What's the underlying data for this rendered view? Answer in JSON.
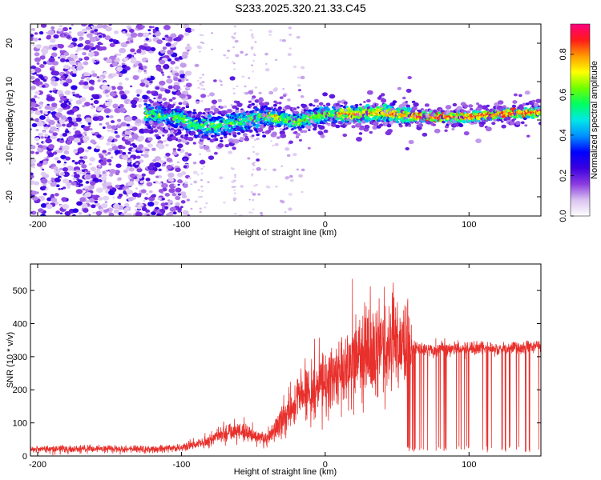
{
  "title": "S233.2025.320.21.33.C45",
  "chart_data": [
    {
      "type": "heatmap",
      "xlabel": "Height of straight line (km)",
      "ylabel": "Frequency (Hz)",
      "xlim": [
        -205,
        150
      ],
      "ylim": [
        -25,
        25
      ],
      "xticks": [
        -200,
        -100,
        0,
        100
      ],
      "yticks": [
        -20,
        -10,
        0,
        10,
        20
      ],
      "colorbar": {
        "label": "Normalized spectral amplitude",
        "range": [
          0,
          0.95
        ],
        "ticks": [
          0.0,
          0.2,
          0.4,
          0.6,
          0.8
        ],
        "colors": [
          "#ffffff",
          "#d9c2f0",
          "#8a3be0",
          "#3a00e0",
          "#0000ff",
          "#0090ff",
          "#00e8e8",
          "#00ff60",
          "#70ff00",
          "#ffff00",
          "#ff9a00",
          "#ff1a1a",
          "#ff0080"
        ]
      },
      "ridge": {
        "x": [
          -120,
          -100,
          -90,
          -80,
          -60,
          -40,
          -20,
          0,
          20,
          40,
          60,
          80,
          100,
          120,
          150
        ],
        "freq": [
          1.5,
          0.5,
          -1.5,
          -1.8,
          -0.5,
          1.0,
          -0.5,
          1.5,
          1.5,
          2.0,
          1.0,
          0.8,
          0.8,
          1.5,
          2.0
        ]
      }
    },
    {
      "type": "line",
      "xlabel": "Height of straight line (km)",
      "ylabel": "SNR (10 * v/v)",
      "xlim": [
        -205,
        150
      ],
      "ylim": [
        0,
        580
      ],
      "xticks": [
        -200,
        -100,
        0,
        100
      ],
      "yticks": [
        0,
        100,
        200,
        300,
        400,
        500
      ],
      "color": "#e8302c",
      "trend": {
        "x": [
          -205,
          -160,
          -120,
          -100,
          -90,
          -80,
          -70,
          -60,
          -50,
          -40,
          -30,
          -20,
          -10,
          0,
          10,
          20,
          30,
          40,
          50,
          60,
          70,
          80,
          100,
          120,
          150
        ],
        "y": [
          20,
          22,
          20,
          25,
          35,
          50,
          70,
          80,
          60,
          50,
          110,
          170,
          200,
          220,
          250,
          290,
          320,
          330,
          340,
          330,
          320,
          325,
          325,
          325,
          330
        ]
      }
    }
  ]
}
